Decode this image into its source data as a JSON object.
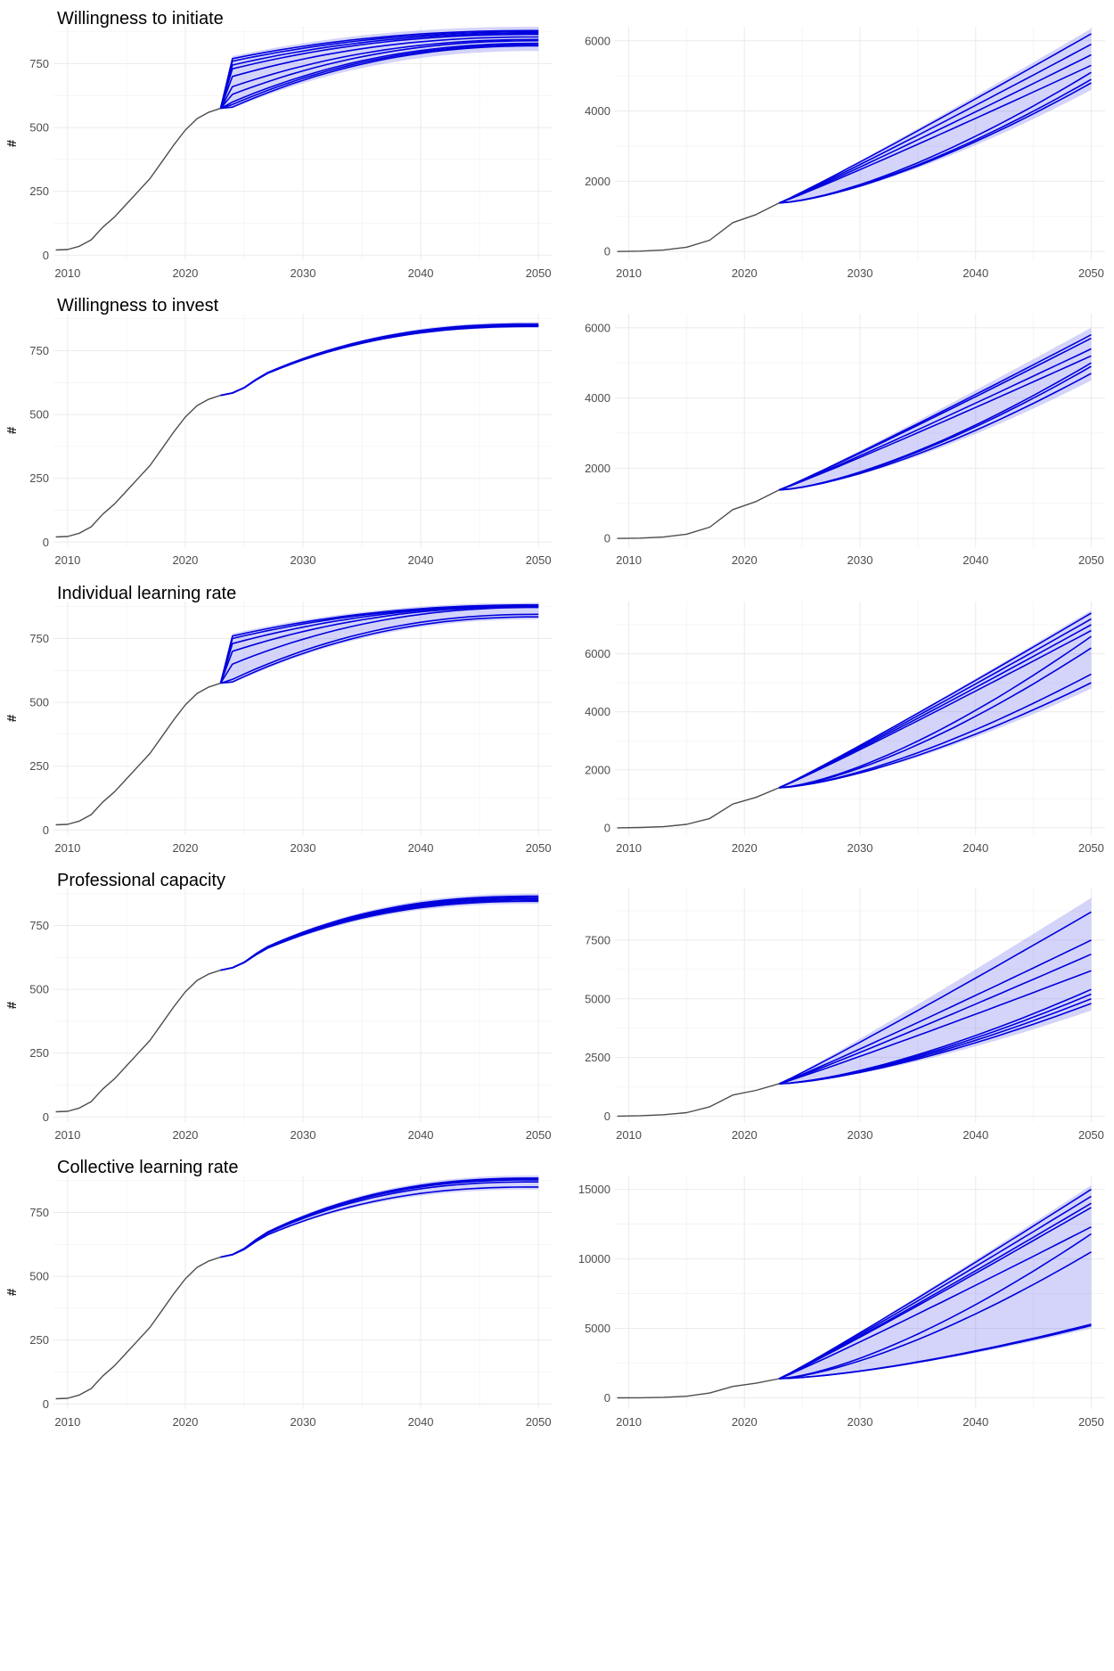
{
  "figure": {
    "row_titles": [
      "Willingness to initiate",
      "Willingness to invest",
      "Individual learning rate",
      "Professional capacity",
      "Collective learning rate"
    ],
    "y_axis_label": "#",
    "colors": {
      "historical": "#4d4d4d",
      "scenario": "#0000dd",
      "band": "#6666ee",
      "grid": "#ebebeb"
    }
  },
  "chart_data": [
    {
      "type": "line",
      "panel": "left",
      "row_title": "Willingness to initiate",
      "ylabel": "#",
      "x_ticks": [
        2010,
        2020,
        2030,
        2040,
        2050
      ],
      "xlim": [
        2008.8,
        2051.2
      ],
      "y_ticks": [
        0,
        250,
        500,
        750
      ],
      "ylim": [
        -20,
        895
      ],
      "historical": {
        "x": [
          2009,
          2010,
          2011,
          2012,
          2013,
          2014,
          2015,
          2016,
          2017,
          2018,
          2019,
          2020,
          2021,
          2022,
          2023
        ],
        "y": [
          20,
          22,
          35,
          60,
          110,
          150,
          200,
          250,
          300,
          365,
          430,
          490,
          535,
          560,
          575
        ]
      },
      "scenario_endpoints_2050": [
        880,
        875,
        870,
        865,
        855,
        845,
        840,
        830,
        825,
        820
      ],
      "scenario_values_2024": [
        770,
        760,
        745,
        730,
        700,
        660,
        630,
        600,
        590,
        580
      ],
      "band": {
        "low_2050": 800,
        "high_2050": 895
      }
    },
    {
      "type": "line",
      "panel": "right",
      "row_title": "Willingness to initiate",
      "x_ticks": [
        2010,
        2020,
        2030,
        2040,
        2050
      ],
      "xlim": [
        2008.8,
        2051.2
      ],
      "y_ticks": [
        0,
        2000,
        4000,
        6000
      ],
      "ylim": [
        -250,
        6400
      ],
      "historical": {
        "x": [
          2009,
          2011,
          2013,
          2015,
          2017,
          2019,
          2021,
          2023
        ],
        "y": [
          0,
          10,
          40,
          120,
          320,
          820,
          1050,
          1380
        ]
      },
      "scenario_endpoints_2050": [
        6200,
        5900,
        5600,
        5300,
        5100,
        4900,
        4800
      ],
      "band": {
        "low_2050": 4600,
        "high_2050": 6350
      }
    },
    {
      "type": "line",
      "panel": "left",
      "row_title": "Willingness to invest",
      "ylabel": "#",
      "x_ticks": [
        2010,
        2020,
        2030,
        2040,
        2050
      ],
      "xlim": [
        2008.8,
        2051.2
      ],
      "y_ticks": [
        0,
        250,
        500,
        750
      ],
      "ylim": [
        -20,
        895
      ],
      "historical": {
        "x": [
          2009,
          2010,
          2011,
          2012,
          2013,
          2014,
          2015,
          2016,
          2017,
          2018,
          2019,
          2020,
          2021,
          2022,
          2023
        ],
        "y": [
          20,
          22,
          35,
          60,
          110,
          150,
          200,
          250,
          300,
          365,
          430,
          490,
          535,
          560,
          575
        ]
      },
      "scenario_endpoints_2050": [
        855,
        853,
        851,
        849,
        847,
        845
      ],
      "band": {
        "low_2050": 840,
        "high_2050": 862
      }
    },
    {
      "type": "line",
      "panel": "right",
      "row_title": "Willingness to invest",
      "x_ticks": [
        2010,
        2020,
        2030,
        2040,
        2050
      ],
      "xlim": [
        2008.8,
        2051.2
      ],
      "y_ticks": [
        0,
        2000,
        4000,
        6000
      ],
      "ylim": [
        -250,
        6400
      ],
      "historical": {
        "x": [
          2009,
          2011,
          2013,
          2015,
          2017,
          2019,
          2021,
          2023
        ],
        "y": [
          0,
          10,
          40,
          120,
          320,
          820,
          1050,
          1380
        ]
      },
      "scenario_endpoints_2050": [
        5800,
        5700,
        5400,
        5200,
        5000,
        4900,
        4700
      ],
      "band": {
        "low_2050": 4500,
        "high_2050": 6000
      }
    },
    {
      "type": "line",
      "panel": "left",
      "row_title": "Individual learning rate",
      "ylabel": "#",
      "x_ticks": [
        2010,
        2020,
        2030,
        2040,
        2050
      ],
      "xlim": [
        2008.8,
        2051.2
      ],
      "y_ticks": [
        0,
        250,
        500,
        750
      ],
      "ylim": [
        -20,
        895
      ],
      "historical": {
        "x": [
          2009,
          2010,
          2011,
          2012,
          2013,
          2014,
          2015,
          2016,
          2017,
          2018,
          2019,
          2020,
          2021,
          2022,
          2023
        ],
        "y": [
          20,
          22,
          35,
          60,
          110,
          150,
          200,
          250,
          300,
          365,
          430,
          490,
          535,
          560,
          575
        ]
      },
      "scenario_endpoints_2050": [
        882,
        880,
        878,
        876,
        872,
        845,
        835
      ],
      "scenario_values_2024": [
        760,
        750,
        730,
        700,
        650,
        590,
        580
      ],
      "band": {
        "low_2050": 825,
        "high_2050": 890
      }
    },
    {
      "type": "line",
      "panel": "right",
      "row_title": "Individual learning rate",
      "x_ticks": [
        2010,
        2020,
        2030,
        2040,
        2050
      ],
      "xlim": [
        2008.8,
        2051.2
      ],
      "y_ticks": [
        0,
        2000,
        4000,
        6000
      ],
      "ylim": [
        -250,
        7800
      ],
      "historical": {
        "x": [
          2009,
          2011,
          2013,
          2015,
          2017,
          2019,
          2021,
          2023
        ],
        "y": [
          0,
          10,
          40,
          120,
          320,
          820,
          1050,
          1380
        ]
      },
      "scenario_endpoints_2050": [
        7400,
        7200,
        7000,
        6800,
        6600,
        6200,
        5300,
        5000
      ],
      "band": {
        "low_2050": 4800,
        "high_2050": 7500
      }
    },
    {
      "type": "line",
      "panel": "left",
      "row_title": "Professional capacity",
      "ylabel": "#",
      "x_ticks": [
        2010,
        2020,
        2030,
        2040,
        2050
      ],
      "xlim": [
        2008.8,
        2051.2
      ],
      "y_ticks": [
        0,
        250,
        500,
        750
      ],
      "ylim": [
        -20,
        895
      ],
      "historical": {
        "x": [
          2009,
          2010,
          2011,
          2012,
          2013,
          2014,
          2015,
          2016,
          2017,
          2018,
          2019,
          2020,
          2021,
          2022,
          2023
        ],
        "y": [
          20,
          22,
          35,
          60,
          110,
          150,
          200,
          250,
          300,
          365,
          430,
          490,
          535,
          560,
          575
        ]
      },
      "scenario_endpoints_2050": [
        865,
        860,
        855,
        850,
        845
      ],
      "band": {
        "low_2050": 835,
        "high_2050": 875
      }
    },
    {
      "type": "line",
      "panel": "right",
      "row_title": "Professional capacity",
      "x_ticks": [
        2010,
        2020,
        2030,
        2040,
        2050
      ],
      "xlim": [
        2008.8,
        2051.2
      ],
      "y_ticks": [
        0,
        2500,
        5000,
        7500
      ],
      "ylim": [
        -250,
        9700
      ],
      "historical": {
        "x": [
          2009,
          2011,
          2013,
          2015,
          2017,
          2019,
          2021,
          2023
        ],
        "y": [
          0,
          20,
          60,
          150,
          400,
          900,
          1100,
          1380
        ]
      },
      "scenario_endpoints_2050": [
        8700,
        7500,
        6900,
        6200,
        5400,
        5200,
        5000,
        4800
      ],
      "band": {
        "low_2050": 4500,
        "high_2050": 9300
      }
    },
    {
      "type": "line",
      "panel": "left",
      "row_title": "Collective learning rate",
      "ylabel": "#",
      "x_ticks": [
        2010,
        2020,
        2030,
        2040,
        2050
      ],
      "xlim": [
        2008.8,
        2051.2
      ],
      "y_ticks": [
        0,
        250,
        500,
        750
      ],
      "ylim": [
        -20,
        895
      ],
      "historical": {
        "x": [
          2009,
          2010,
          2011,
          2012,
          2013,
          2014,
          2015,
          2016,
          2017,
          2018,
          2019,
          2020,
          2021,
          2022,
          2023
        ],
        "y": [
          20,
          22,
          35,
          60,
          110,
          150,
          200,
          250,
          300,
          365,
          430,
          490,
          535,
          560,
          575
        ]
      },
      "scenario_endpoints_2050": [
        885,
        882,
        878,
        870,
        850
      ],
      "band": {
        "low_2050": 840,
        "high_2050": 895
      }
    },
    {
      "type": "line",
      "panel": "right",
      "row_title": "Collective learning rate",
      "x_ticks": [
        2010,
        2020,
        2030,
        2040,
        2050
      ],
      "xlim": [
        2008.8,
        2051.2
      ],
      "y_ticks": [
        0,
        5000,
        10000,
        15000
      ],
      "ylim": [
        -800,
        16000
      ],
      "historical": {
        "x": [
          2009,
          2011,
          2013,
          2015,
          2017,
          2019,
          2021,
          2023
        ],
        "y": [
          0,
          10,
          40,
          120,
          350,
          820,
          1050,
          1380
        ]
      },
      "scenario_endpoints_2050": [
        15000,
        14500,
        14000,
        13700,
        12300,
        11800,
        10500,
        5300,
        5200
      ],
      "band": {
        "low_2050": 5000,
        "high_2050": 15300
      }
    }
  ]
}
